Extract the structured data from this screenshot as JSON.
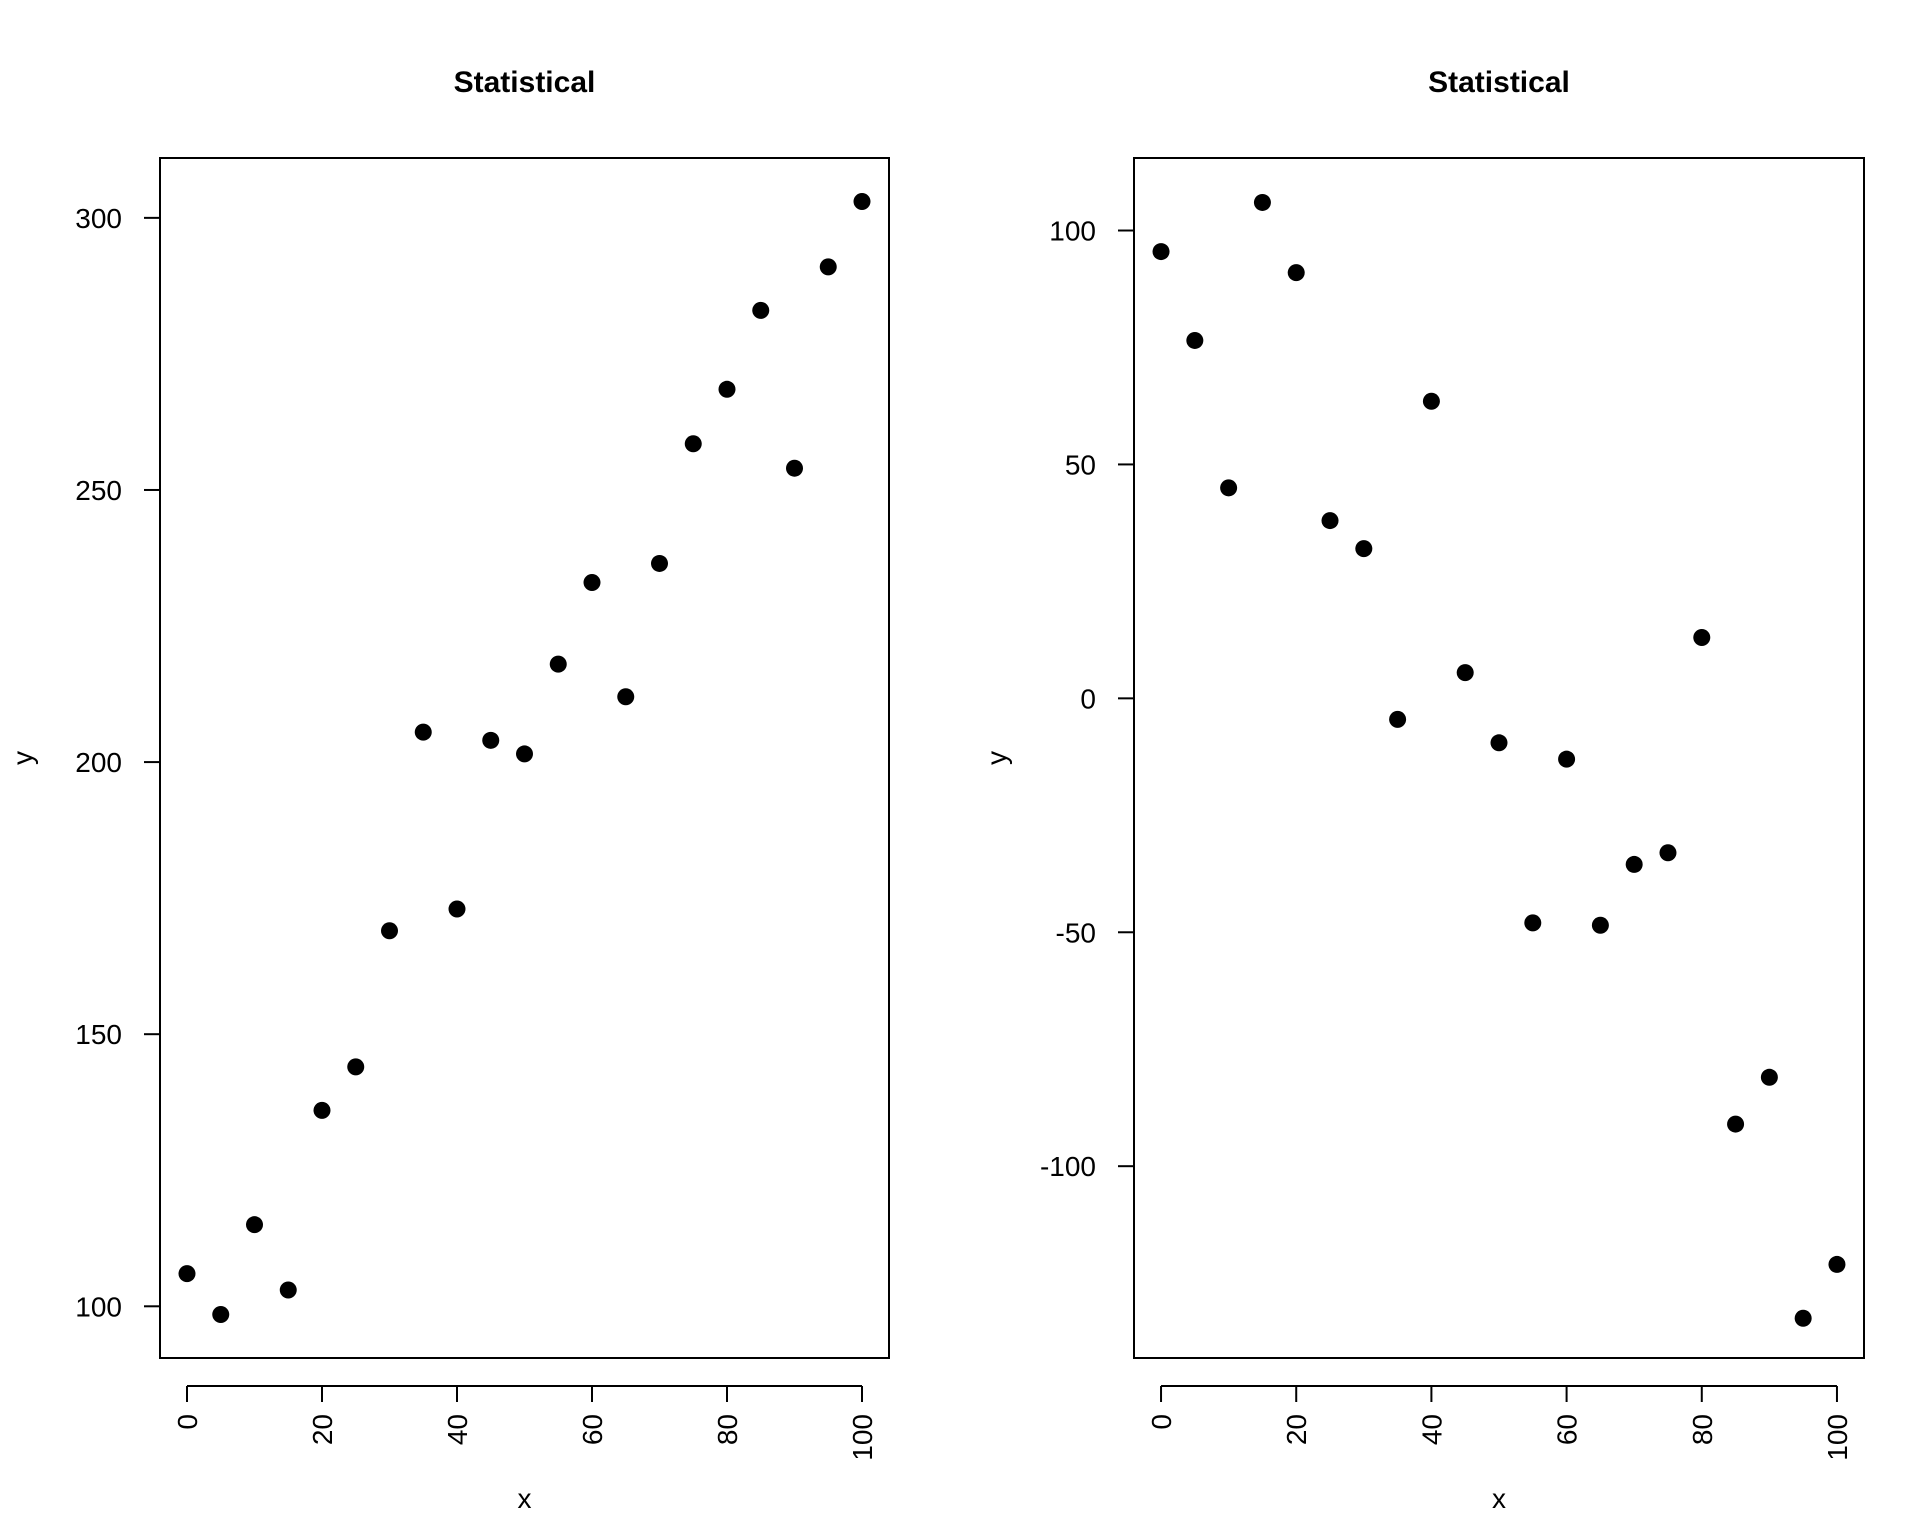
{
  "chart_data": [
    {
      "type": "scatter",
      "title": "Statistical",
      "xlabel": "x",
      "ylabel": "y",
      "xlim": [
        -4,
        104
      ],
      "ylim": [
        90.5,
        311
      ],
      "xticks": [
        0,
        20,
        40,
        60,
        80,
        100
      ],
      "xtick_labels": [
        "0",
        "20",
        "40",
        "60",
        "80",
        "100"
      ],
      "yticks": [
        100,
        150,
        200,
        250,
        300
      ],
      "ytick_labels": [
        "100",
        "150",
        "200",
        "250",
        "300"
      ],
      "grid": false,
      "legend": "none",
      "point_color": "#000000",
      "x": [
        0,
        5,
        10,
        15,
        20,
        25,
        30,
        35,
        40,
        45,
        50,
        55,
        60,
        65,
        70,
        75,
        80,
        85,
        90,
        95,
        100
      ],
      "y": [
        106,
        98.5,
        115,
        103,
        136,
        144,
        169,
        205.5,
        173,
        204,
        201.5,
        218,
        233,
        212,
        236.5,
        258.5,
        268.5,
        283,
        254,
        291,
        303
      ]
    },
    {
      "type": "scatter",
      "title": "Statistical",
      "xlabel": "x",
      "ylabel": "y",
      "xlim": [
        -4,
        104
      ],
      "ylim": [
        -141,
        115.5
      ],
      "xticks": [
        0,
        20,
        40,
        60,
        80,
        100
      ],
      "xtick_labels": [
        "0",
        "20",
        "40",
        "60",
        "80",
        "100"
      ],
      "yticks": [
        -100,
        -50,
        0,
        50,
        100
      ],
      "ytick_labels": [
        "-100",
        "-50",
        "0",
        "50",
        "100"
      ],
      "grid": false,
      "legend": "none",
      "point_color": "#000000",
      "x": [
        0,
        5,
        10,
        15,
        20,
        25,
        30,
        35,
        40,
        45,
        50,
        55,
        60,
        65,
        70,
        75,
        80,
        85,
        90,
        95,
        100
      ],
      "y": [
        95.5,
        76.5,
        45,
        106,
        91,
        38,
        32,
        -4.5,
        63.5,
        5.5,
        -9.5,
        -48,
        -13,
        -48.5,
        -35.5,
        -33,
        13,
        -91,
        -81,
        -132.5,
        -121
      ]
    }
  ]
}
